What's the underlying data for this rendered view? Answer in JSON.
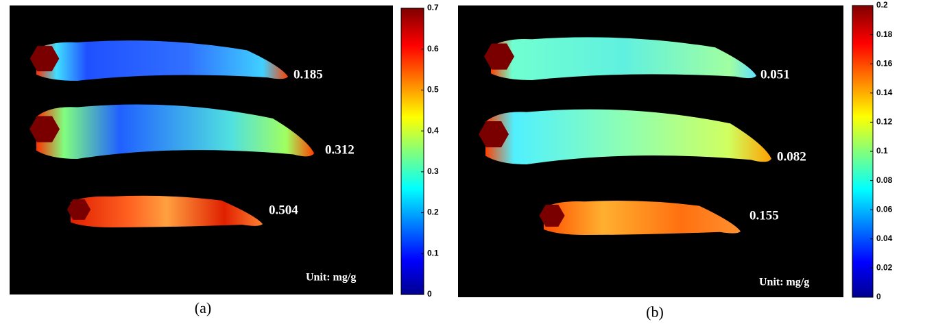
{
  "panels": [
    {
      "caption": "(a)",
      "unit": "Unit: mg/g",
      "sample_values": [
        0.185,
        0.312,
        0.504
      ],
      "colorbar": {
        "lim": [
          0,
          0.7
        ],
        "ticks": [
          0,
          0.1,
          0.2,
          0.3,
          0.4,
          0.5,
          0.6,
          0.7
        ]
      }
    },
    {
      "caption": "(b)",
      "unit": "Unit: mg/g",
      "sample_values": [
        0.051,
        0.082,
        0.155
      ],
      "colorbar": {
        "lim": [
          0,
          0.2
        ],
        "ticks": [
          0,
          0.02,
          0.04,
          0.06,
          0.08,
          0.1,
          0.12,
          0.14,
          0.16,
          0.18,
          0.2
        ]
      }
    }
  ]
}
